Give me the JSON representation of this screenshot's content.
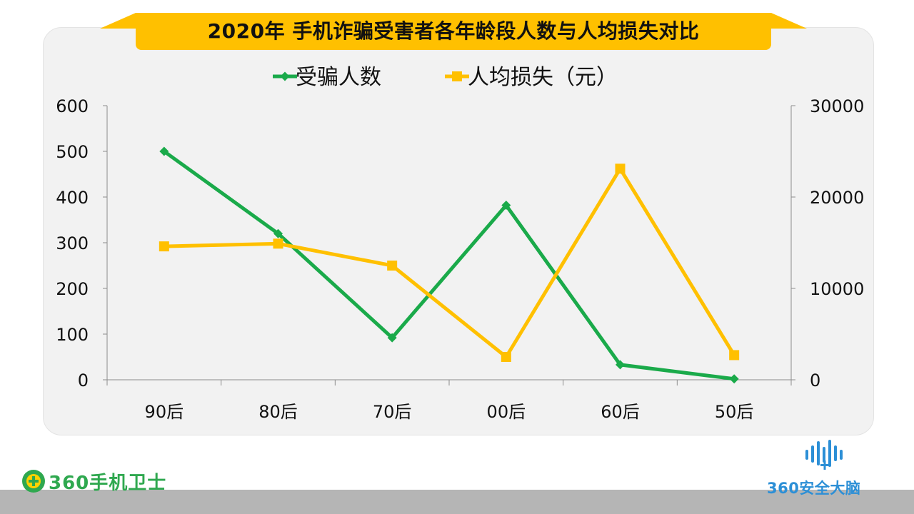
{
  "chart_data": {
    "type": "line",
    "title": "2020年 手机诈骗受害者各年龄段人数与人均损失对比",
    "categories": [
      "90后",
      "80后",
      "70后",
      "00后",
      "60后",
      "50后"
    ],
    "series": [
      {
        "name": "受骗人数",
        "axis": "left",
        "color": "#1aaa4a",
        "marker": "diamond",
        "values": [
          500,
          320,
          92,
          382,
          33,
          2
        ]
      },
      {
        "name": "人均损失（元）",
        "axis": "right",
        "color": "#ffc000",
        "marker": "square",
        "values": [
          14600,
          14900,
          12500,
          2500,
          23100,
          2700
        ]
      }
    ],
    "y_left": {
      "ylim": [
        0,
        600
      ],
      "ticks": [
        "0",
        "100",
        "200",
        "300",
        "400",
        "500",
        "600"
      ]
    },
    "y_right": {
      "ylim": [
        0,
        30000
      ],
      "ticks": [
        "0",
        "10000",
        "20000",
        "30000"
      ]
    },
    "legend_position": "top-center",
    "grid": false
  },
  "branding": {
    "left_logo_text": "360手机卫士",
    "right_logo_text": "360安全大脑",
    "accent_green": "#2fa84f",
    "accent_blue": "#2c8fd6",
    "title_ribbon_color": "#ffc000"
  }
}
